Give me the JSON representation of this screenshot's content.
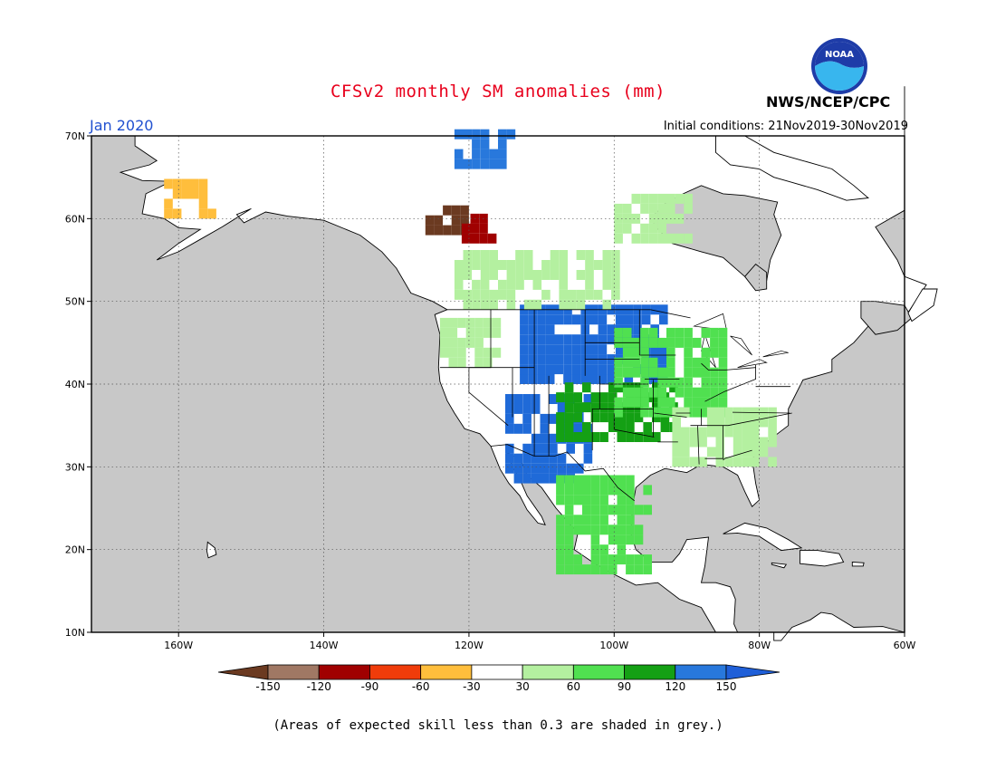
{
  "header": {
    "title": "CFSv2 monthly SM anomalies (mm)",
    "agency": "NWS/NCEP/CPC",
    "month": "Jan 2020",
    "initial_conditions": "Initial conditions: 21Nov2019-30Nov2019",
    "logo_text": "NOAA"
  },
  "footer_note": "(Areas of expected skill less than 0.3 are shaded in grey.)",
  "map": {
    "lon_range": [
      -172,
      -60
    ],
    "lat_range": [
      10,
      70
    ],
    "lat_ticks": [
      {
        "value": 70,
        "label": "70N"
      },
      {
        "value": 60,
        "label": "60N"
      },
      {
        "value": 50,
        "label": "50N"
      },
      {
        "value": 40,
        "label": "40N"
      },
      {
        "value": 30,
        "label": "30N"
      },
      {
        "value": 20,
        "label": "20N"
      },
      {
        "value": 10,
        "label": "10N"
      }
    ],
    "lon_ticks": [
      {
        "value": -160,
        "label": "160W"
      },
      {
        "value": -140,
        "label": "140W"
      },
      {
        "value": -120,
        "label": "120W"
      },
      {
        "value": -100,
        "label": "100W"
      },
      {
        "value": -80,
        "label": "80W"
      },
      {
        "value": -60,
        "label": "60W"
      }
    ],
    "colors": {
      "ocean": "#c8c8c8",
      "land": "#ffffff",
      "grid": "#555555"
    }
  },
  "legend": {
    "bins": [
      {
        "color": "#6b3a21"
      },
      {
        "color": "#a07864"
      },
      {
        "color": "#a00000"
      },
      {
        "color": "#f03c0a"
      },
      {
        "color": "#ffbe3c"
      },
      {
        "color": "#ffffff"
      },
      {
        "color": "#b4f0a0"
      },
      {
        "color": "#50e050"
      },
      {
        "color": "#14a014"
      },
      {
        "color": "#2878dc"
      },
      {
        "color": "#1f5fd8"
      }
    ],
    "tick_labels": [
      "-150",
      "-120",
      "-90",
      "-60",
      "-30",
      "30",
      "60",
      "90",
      "120",
      "150"
    ]
  },
  "anomaly_regions": [
    {
      "name": "northern-plains-wet",
      "color": "#1f6ad8",
      "lon": [
        -113,
        -93
      ],
      "lat": [
        40,
        49
      ]
    },
    {
      "name": "southern-rockies-wet",
      "color": "#1f6ad8",
      "lon": [
        -115,
        -104
      ],
      "lat": [
        28,
        38
      ]
    },
    {
      "name": "great-plains-moist",
      "color": "#14a014",
      "lon": [
        -108,
        -92
      ],
      "lat": [
        33,
        40
      ]
    },
    {
      "name": "midwest-moist",
      "color": "#50e050",
      "lon": [
        -100,
        -85
      ],
      "lat": [
        36,
        46
      ]
    },
    {
      "name": "southeast-moist",
      "color": "#b4f0a0",
      "lon": [
        -92,
        -78
      ],
      "lat": [
        30,
        37
      ]
    },
    {
      "name": "mexico-moist",
      "color": "#50e050",
      "lon": [
        -108,
        -95
      ],
      "lat": [
        17,
        28
      ]
    },
    {
      "name": "canada-prairie-moist",
      "color": "#b4f0a0",
      "lon": [
        -122,
        -100
      ],
      "lat": [
        49,
        56
      ]
    },
    {
      "name": "hudson-moist",
      "color": "#b4f0a0",
      "lon": [
        -100,
        -90
      ],
      "lat": [
        57,
        63
      ]
    },
    {
      "name": "arctic-blue",
      "color": "#2878dc",
      "lon": [
        -122,
        -114
      ],
      "lat": [
        66,
        70
      ]
    },
    {
      "name": "yukon-dry",
      "color": "#6b3a21",
      "lon": [
        -126,
        -120
      ],
      "lat": [
        58,
        61
      ]
    },
    {
      "name": "nwt-dry",
      "color": "#a00000",
      "lon": [
        -121,
        -117
      ],
      "lat": [
        57,
        60
      ]
    },
    {
      "name": "alaska-dry",
      "color": "#ffbe3c",
      "lon": [
        -162,
        -155
      ],
      "lat": [
        60,
        64
      ]
    },
    {
      "name": "pacific-nw-moist",
      "color": "#b4f0a0",
      "lon": [
        -124,
        -116
      ],
      "lat": [
        42,
        48
      ]
    }
  ]
}
